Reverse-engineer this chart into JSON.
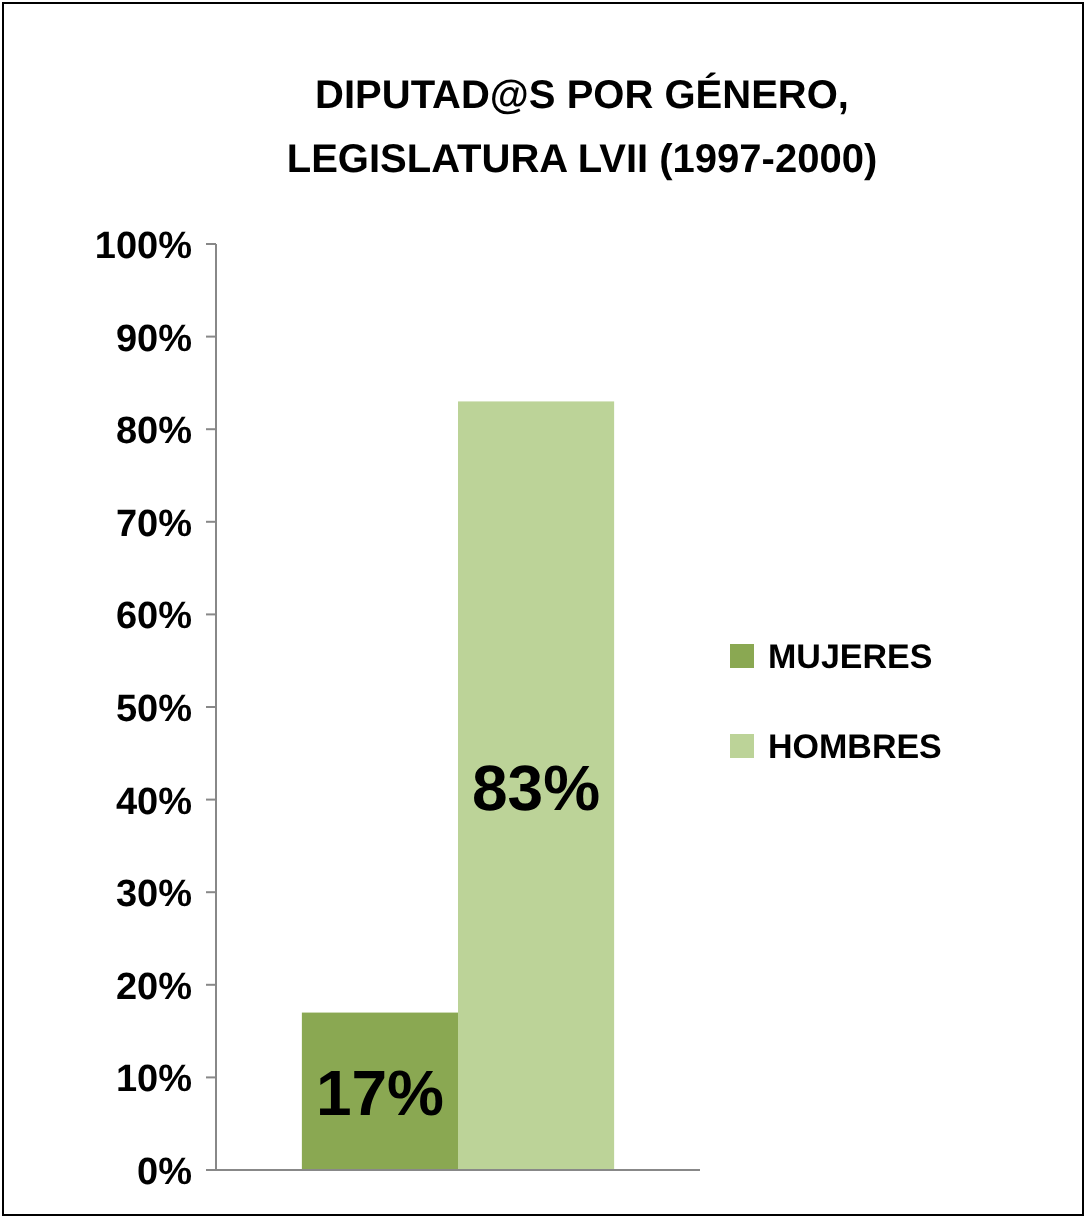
{
  "chart_data": {
    "type": "bar",
    "title": "DIPUTAD@S POR GÉNERO,\nLEGISLATURA LVII (1997-2000)",
    "categories": [
      null
    ],
    "series": [
      {
        "name": "MUJERES",
        "color": "#8aa852",
        "values": [
          17
        ],
        "value_labels": [
          "17%"
        ]
      },
      {
        "name": "HOMBRES",
        "color": "#bcd398",
        "values": [
          83
        ],
        "value_labels": [
          "83%"
        ]
      }
    ],
    "ylim": [
      0,
      100
    ],
    "yticks": [
      {
        "value": 0,
        "label": "0%"
      },
      {
        "value": 10,
        "label": "10%"
      },
      {
        "value": 20,
        "label": "20%"
      },
      {
        "value": 30,
        "label": "30%"
      },
      {
        "value": 40,
        "label": "40%"
      },
      {
        "value": 50,
        "label": "50%"
      },
      {
        "value": 60,
        "label": "60%"
      },
      {
        "value": 70,
        "label": "70%"
      },
      {
        "value": 80,
        "label": "80%"
      },
      {
        "value": 90,
        "label": "90%"
      },
      {
        "value": 100,
        "label": "100%"
      }
    ],
    "grid": false,
    "legend": "right"
  }
}
